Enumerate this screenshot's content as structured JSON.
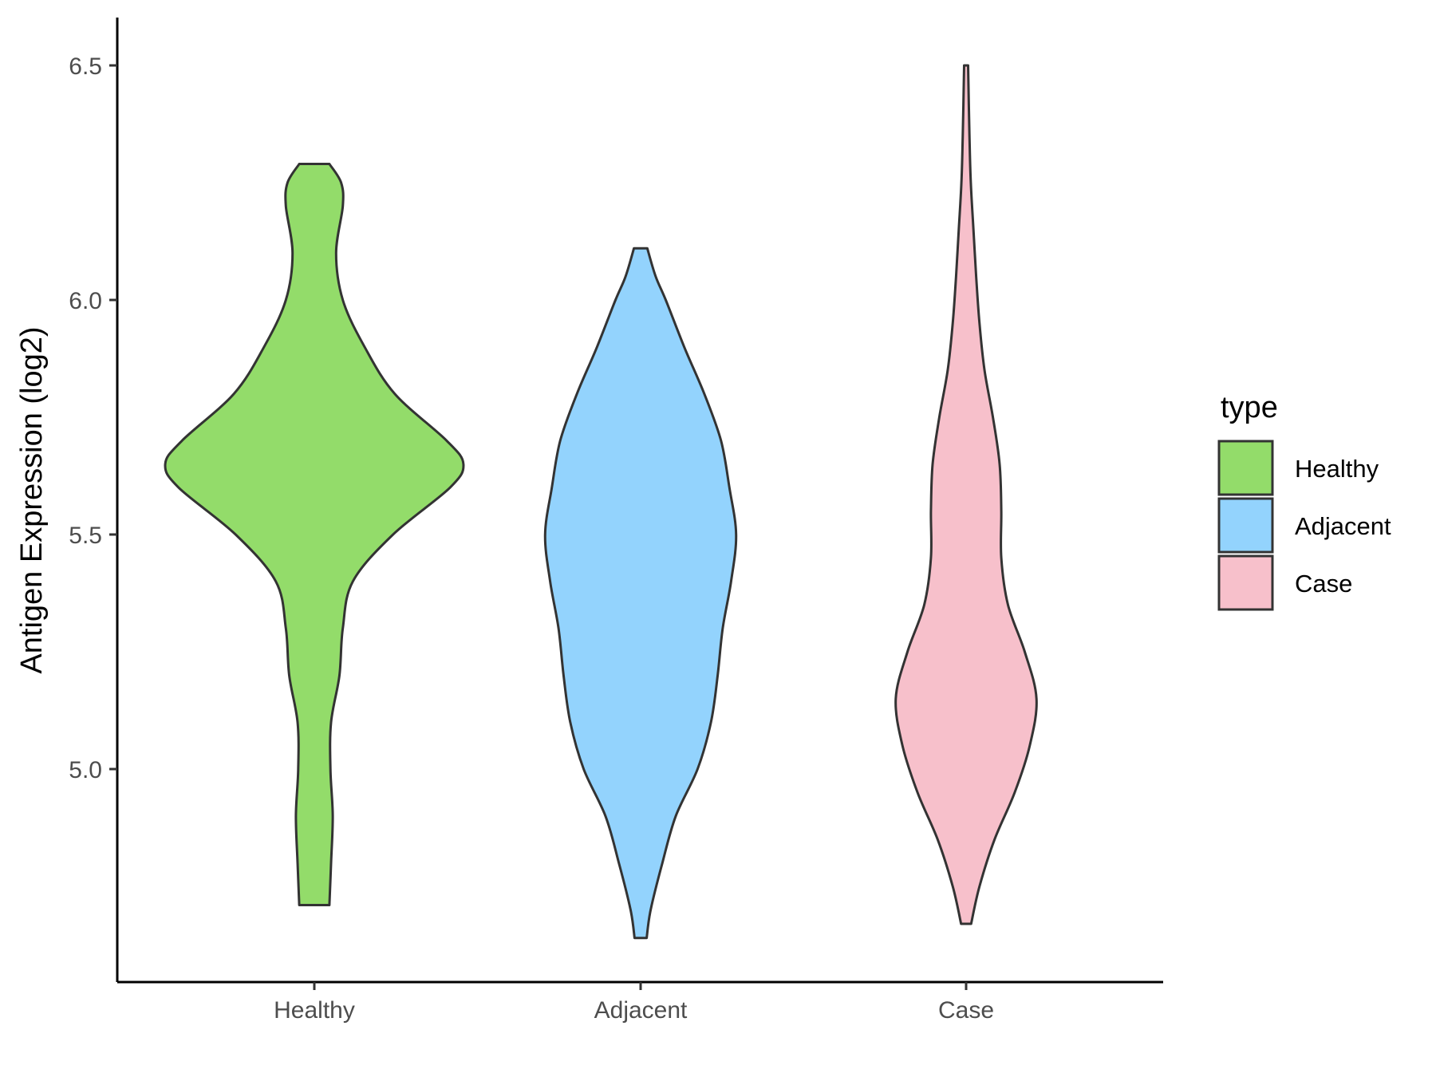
{
  "chart_data": {
    "type": "violin",
    "categories": [
      "Healthy",
      "Adjacent",
      "Case"
    ],
    "ylabel": "Antigen Expression (log2)",
    "xlabel": "",
    "ylim": [
      4.55,
      6.6
    ],
    "yticks": [
      "5.0",
      "5.5",
      "6.0",
      "6.5"
    ],
    "ytick_values": [
      5.0,
      5.5,
      6.0,
      6.5
    ],
    "grid": false,
    "legend": {
      "title": "type",
      "position": "right",
      "entries": [
        "Healthy",
        "Adjacent",
        "Case"
      ]
    },
    "colors": {
      "Healthy": "#93dc6a",
      "Adjacent": "#93d3fd",
      "Case": "#f7c0cb",
      "outline": "#333333"
    },
    "series": [
      {
        "name": "Healthy",
        "profile": [
          [
            4.71,
            0.045
          ],
          [
            4.8,
            0.05
          ],
          [
            4.9,
            0.055
          ],
          [
            5.0,
            0.048
          ],
          [
            5.1,
            0.05
          ],
          [
            5.2,
            0.075
          ],
          [
            5.3,
            0.085
          ],
          [
            5.4,
            0.115
          ],
          [
            5.5,
            0.235
          ],
          [
            5.6,
            0.405
          ],
          [
            5.65,
            0.445
          ],
          [
            5.7,
            0.395
          ],
          [
            5.8,
            0.24
          ],
          [
            5.9,
            0.15
          ],
          [
            6.0,
            0.085
          ],
          [
            6.1,
            0.065
          ],
          [
            6.2,
            0.085
          ],
          [
            6.25,
            0.08
          ],
          [
            6.29,
            0.045
          ]
        ]
      },
      {
        "name": "Adjacent",
        "profile": [
          [
            4.64,
            0.018
          ],
          [
            4.7,
            0.03
          ],
          [
            4.8,
            0.065
          ],
          [
            4.9,
            0.105
          ],
          [
            5.0,
            0.17
          ],
          [
            5.1,
            0.21
          ],
          [
            5.2,
            0.23
          ],
          [
            5.3,
            0.245
          ],
          [
            5.4,
            0.27
          ],
          [
            5.5,
            0.285
          ],
          [
            5.6,
            0.265
          ],
          [
            5.7,
            0.24
          ],
          [
            5.8,
            0.19
          ],
          [
            5.9,
            0.13
          ],
          [
            6.0,
            0.075
          ],
          [
            6.05,
            0.045
          ],
          [
            6.11,
            0.02
          ]
        ]
      },
      {
        "name": "Case",
        "profile": [
          [
            4.67,
            0.015
          ],
          [
            4.75,
            0.04
          ],
          [
            4.85,
            0.085
          ],
          [
            4.95,
            0.145
          ],
          [
            5.05,
            0.19
          ],
          [
            5.15,
            0.21
          ],
          [
            5.25,
            0.175
          ],
          [
            5.35,
            0.125
          ],
          [
            5.45,
            0.105
          ],
          [
            5.55,
            0.105
          ],
          [
            5.65,
            0.1
          ],
          [
            5.75,
            0.08
          ],
          [
            5.85,
            0.055
          ],
          [
            5.95,
            0.04
          ],
          [
            6.05,
            0.03
          ],
          [
            6.15,
            0.022
          ],
          [
            6.25,
            0.014
          ],
          [
            6.35,
            0.01
          ],
          [
            6.5,
            0.006
          ]
        ]
      }
    ]
  }
}
